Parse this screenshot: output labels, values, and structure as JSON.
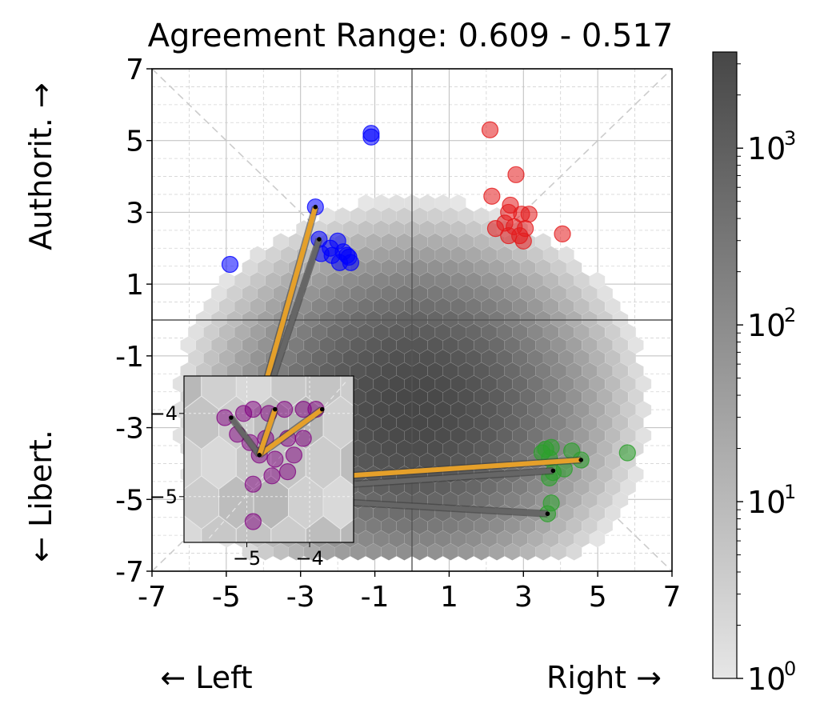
{
  "chart_data": {
    "type": "scatter",
    "title": "Agreement Range: 0.609 - 0.517",
    "xlim": [
      -7,
      7
    ],
    "ylim": [
      -7,
      7
    ],
    "x_ticks": [
      "-7",
      "-5",
      "-3",
      "-1",
      "1",
      "3",
      "5",
      "7"
    ],
    "y_ticks": [
      "-7",
      "-5",
      "-3",
      "-1",
      "1",
      "3",
      "5",
      "7"
    ],
    "x_ticks_values": [
      -7,
      -5,
      -3,
      -1,
      1,
      3,
      5,
      7
    ],
    "y_ticks_values": [
      -7,
      -5,
      -3,
      -1,
      1,
      3,
      5,
      7
    ],
    "xlabel_left": "← Left",
    "xlabel_right": "Right →",
    "ylabel_top": "Authorit. →",
    "ylabel_bottom": "← Libert.",
    "grid": true,
    "colorbar": {
      "scale": "log",
      "range": [
        1,
        3500
      ],
      "tick_values": [
        1,
        10,
        100,
        1000
      ],
      "ticks": [
        {
          "base": "10",
          "exp": "0"
        },
        {
          "base": "10",
          "exp": "1"
        },
        {
          "base": "10",
          "exp": "2"
        },
        {
          "base": "10",
          "exp": "3"
        }
      ],
      "color_low": "#e6e6e6",
      "color_high": "#474747"
    },
    "density": {
      "type": "hexbin",
      "center": [
        0.0,
        -2.5
      ],
      "spread": [
        2.5,
        2.3
      ],
      "peak_count": 3500
    },
    "clusters": [
      {
        "name": "",
        "color": "#0000ff",
        "points": [
          [
            -1.1,
            5.2
          ],
          [
            -1.1,
            5.1
          ],
          [
            -2.6,
            3.15
          ],
          [
            -4.9,
            1.55
          ],
          [
            -2.5,
            2.25
          ],
          [
            -2.2,
            2.0
          ],
          [
            -2.45,
            1.85
          ],
          [
            -2.0,
            2.2
          ],
          [
            -2.15,
            1.8
          ],
          [
            -1.85,
            1.9
          ],
          [
            -1.7,
            1.75
          ],
          [
            -1.95,
            1.6
          ],
          [
            -1.65,
            1.6
          ],
          [
            -1.75,
            1.8
          ]
        ]
      },
      {
        "name": "",
        "color": "#e41a1c",
        "points": [
          [
            2.1,
            5.3
          ],
          [
            2.8,
            4.05
          ],
          [
            2.15,
            3.45
          ],
          [
            2.65,
            3.2
          ],
          [
            2.6,
            3.0
          ],
          [
            2.95,
            2.95
          ],
          [
            3.15,
            2.95
          ],
          [
            2.5,
            2.7
          ],
          [
            2.25,
            2.55
          ],
          [
            2.75,
            2.6
          ],
          [
            3.05,
            2.55
          ],
          [
            2.6,
            2.35
          ],
          [
            2.9,
            2.35
          ],
          [
            3.0,
            2.2
          ],
          [
            4.05,
            2.4
          ]
        ]
      },
      {
        "name": "",
        "color": "#2ca02c",
        "points": [
          [
            3.6,
            -3.6
          ],
          [
            3.75,
            -3.55
          ],
          [
            3.5,
            -3.7
          ],
          [
            3.7,
            -3.85
          ],
          [
            4.3,
            -3.65
          ],
          [
            4.55,
            -3.9
          ],
          [
            5.8,
            -3.7
          ],
          [
            3.7,
            -4.4
          ],
          [
            4.1,
            -4.15
          ],
          [
            3.8,
            -4.25
          ],
          [
            3.75,
            -5.1
          ],
          [
            3.65,
            -5.4
          ]
        ]
      },
      {
        "name": "",
        "color": "#800080",
        "points": [
          [
            -5.3,
            -4.05
          ],
          [
            -5.05,
            -4.25
          ],
          [
            -4.85,
            -4.15
          ],
          [
            -4.7,
            -4.2
          ],
          [
            -4.55,
            -4.1
          ],
          [
            -4.3,
            -4.1
          ],
          [
            -4.2,
            -4.0
          ],
          [
            -4.0,
            -4.05
          ],
          [
            -3.85,
            -4.0
          ],
          [
            -3.9,
            -4.2
          ],
          [
            -5.0,
            -4.55
          ],
          [
            -4.85,
            -4.75
          ],
          [
            -4.6,
            -4.6
          ],
          [
            -4.25,
            -4.6
          ],
          [
            -4.05,
            -4.55
          ],
          [
            -4.3,
            -4.8
          ],
          [
            -4.75,
            -4.95
          ],
          [
            -4.6,
            -5.1
          ],
          [
            -4.85,
            -5.35
          ]
        ]
      }
    ],
    "segments": [
      {
        "color": "#e5a02a",
        "from": [
          -4.8,
          -4.9
        ],
        "to": [
          -2.6,
          3.15
        ]
      },
      {
        "color": "#666666",
        "from": [
          -4.8,
          -4.9
        ],
        "to": [
          -2.5,
          2.25
        ]
      },
      {
        "color": "#e5a02a",
        "from": [
          -4.05,
          -4.5
        ],
        "to": [
          4.55,
          -3.9
        ]
      },
      {
        "color": "#666666",
        "from": [
          -4.05,
          -4.75
        ],
        "to": [
          3.8,
          -4.2
        ]
      },
      {
        "color": "#666666",
        "from": [
          -4.8,
          -4.9
        ],
        "to": [
          3.65,
          -5.4
        ]
      },
      {
        "color": "#666666",
        "from": [
          -4.8,
          -4.9
        ],
        "to": [
          -5.3,
          -4.1
        ]
      },
      {
        "color": "#e5a02a",
        "from": [
          -4.8,
          -4.9
        ],
        "to": [
          -3.85,
          -4.0
        ]
      },
      {
        "color": "#666666",
        "from": [
          -4.8,
          -4.9
        ],
        "to": [
          -3.8,
          -4.0
        ]
      }
    ],
    "inset": {
      "xlim": [
        -6.0,
        -3.3
      ],
      "ylim": [
        -5.55,
        -3.55
      ],
      "x_ticks": [
        "−5",
        "−4"
      ],
      "y_ticks": [
        "−4",
        "−5"
      ],
      "x_ticks_values": [
        -5,
        -4
      ],
      "y_ticks_values": [
        -4,
        -5
      ],
      "points": [
        [
          -5.35,
          -4.05
        ],
        [
          -5.05,
          -4.0
        ],
        [
          -4.9,
          -3.95
        ],
        [
          -4.65,
          -4.0
        ],
        [
          -4.4,
          -3.95
        ],
        [
          -4.1,
          -3.95
        ],
        [
          -3.9,
          -3.95
        ],
        [
          -5.15,
          -4.25
        ],
        [
          -4.95,
          -4.35
        ],
        [
          -4.7,
          -4.3
        ],
        [
          -4.35,
          -4.3
        ],
        [
          -4.1,
          -4.3
        ],
        [
          -4.8,
          -4.5
        ],
        [
          -4.55,
          -4.55
        ],
        [
          -4.25,
          -4.5
        ],
        [
          -4.9,
          -4.85
        ],
        [
          -4.6,
          -4.75
        ],
        [
          -4.35,
          -4.7
        ],
        [
          -4.9,
          -5.3
        ]
      ],
      "segments": [
        {
          "color": "#e5a02a",
          "from": [
            -4.8,
            -4.5
          ],
          "to": [
            -3.8,
            -3.95
          ]
        },
        {
          "color": "#666666",
          "from": [
            -4.8,
            -4.5
          ],
          "to": [
            -5.25,
            -4.05
          ]
        },
        {
          "color": "#e5a02a",
          "from": [
            -4.8,
            -4.5
          ],
          "to": [
            -4.55,
            -3.95
          ]
        }
      ]
    }
  }
}
